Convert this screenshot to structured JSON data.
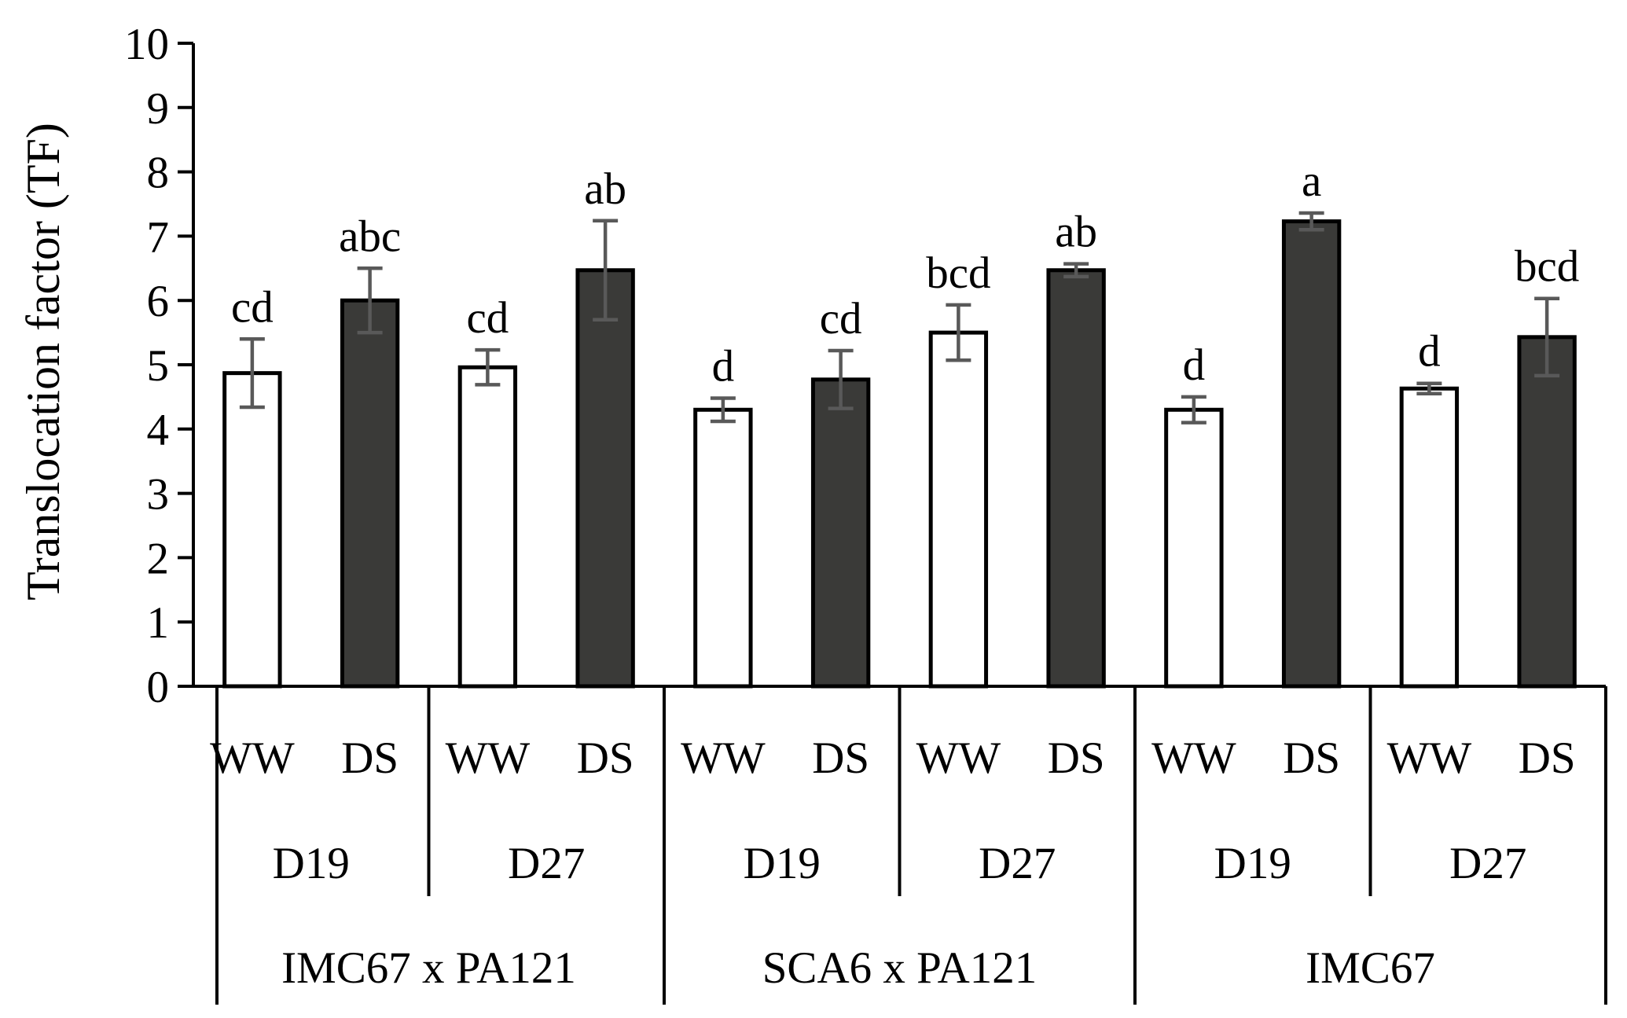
{
  "chart_data": {
    "type": "bar",
    "ylabel": "Translocation factor (TF)",
    "xlabel": "",
    "ylim": [
      0,
      10
    ],
    "yticks": [
      0,
      1,
      2,
      3,
      4,
      5,
      6,
      7,
      8,
      9,
      10
    ],
    "grid": false,
    "legend": "none",
    "colors": {
      "WW": "#ffffff",
      "DS": "#3a3a38",
      "bar_edge": "#000000",
      "error_bar": "#595959"
    },
    "groups": [
      {
        "genotype": "IMC67 x PA121",
        "days": [
          {
            "day": "D19",
            "bars": [
              {
                "treatment": "WW",
                "value": 4.87,
                "error": 0.53,
                "letter": "cd"
              },
              {
                "treatment": "DS",
                "value": 6.0,
                "error": 0.5,
                "letter": "abc"
              }
            ]
          },
          {
            "day": "D27",
            "bars": [
              {
                "treatment": "WW",
                "value": 4.96,
                "error": 0.27,
                "letter": "cd"
              },
              {
                "treatment": "DS",
                "value": 6.47,
                "error": 0.77,
                "letter": "ab"
              }
            ]
          }
        ]
      },
      {
        "genotype": "SCA6 x PA121",
        "days": [
          {
            "day": "D19",
            "bars": [
              {
                "treatment": "WW",
                "value": 4.3,
                "error": 0.18,
                "letter": "d"
              },
              {
                "treatment": "DS",
                "value": 4.77,
                "error": 0.45,
                "letter": "cd"
              }
            ]
          },
          {
            "day": "D27",
            "bars": [
              {
                "treatment": "WW",
                "value": 5.5,
                "error": 0.43,
                "letter": "bcd"
              },
              {
                "treatment": "DS",
                "value": 6.47,
                "error": 0.1,
                "letter": "ab"
              }
            ]
          }
        ]
      },
      {
        "genotype": "IMC67",
        "days": [
          {
            "day": "D19",
            "bars": [
              {
                "treatment": "WW",
                "value": 4.3,
                "error": 0.2,
                "letter": "d"
              },
              {
                "treatment": "DS",
                "value": 7.23,
                "error": 0.13,
                "letter": "a"
              }
            ]
          },
          {
            "day": "D27",
            "bars": [
              {
                "treatment": "WW",
                "value": 4.63,
                "error": 0.08,
                "letter": "d"
              },
              {
                "treatment": "DS",
                "value": 5.43,
                "error": 0.6,
                "letter": "bcd"
              }
            ]
          }
        ]
      }
    ]
  }
}
